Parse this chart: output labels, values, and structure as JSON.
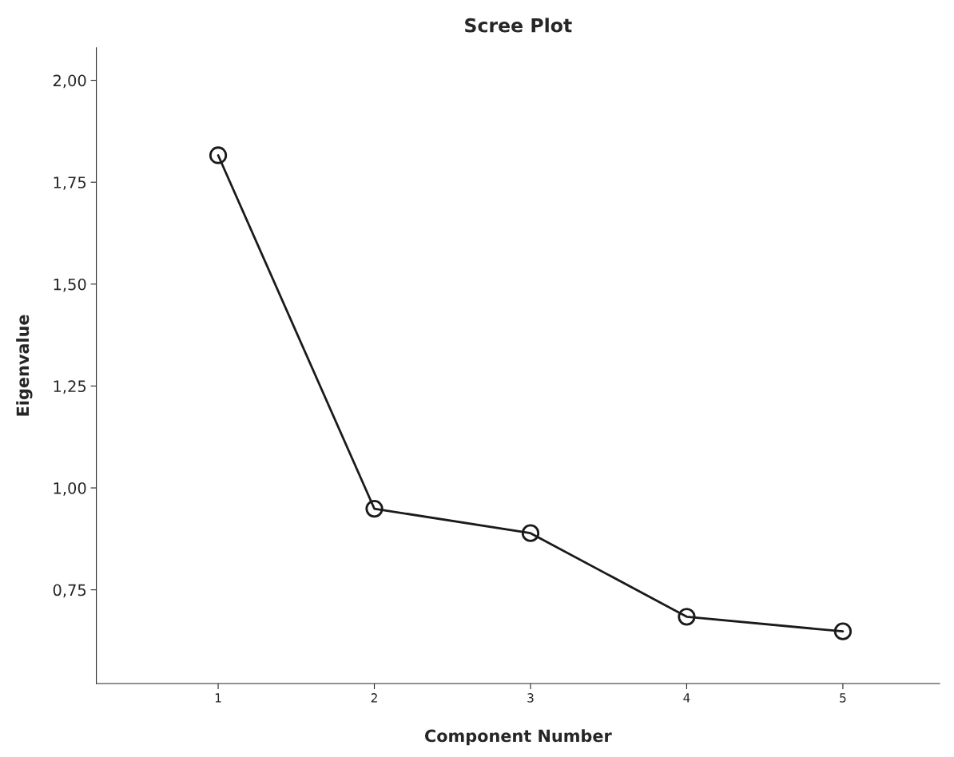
{
  "chart_data": {
    "type": "line",
    "title": "Scree Plot",
    "xlabel": "Component Number",
    "ylabel": "Eigenvalue",
    "x": [
      1,
      2,
      3,
      4,
      5
    ],
    "series": [
      {
        "color": "#1a1a1a",
        "values": [
          1.816,
          0.949,
          0.889,
          0.684,
          0.648
        ]
      }
    ],
    "marker": "circle",
    "line_style": "solid",
    "grid": false,
    "xlim": [
      0.22,
      5.62
    ],
    "xticks": [
      1,
      2,
      3,
      4,
      5
    ],
    "ylim": [
      0.52,
      2.08
    ],
    "yticks": [
      {
        "value": 0.75,
        "label": "0,75"
      },
      {
        "value": 1.0,
        "label": "1,00"
      },
      {
        "value": 1.25,
        "label": "1,25"
      },
      {
        "value": 1.5,
        "label": "1,50"
      },
      {
        "value": 1.75,
        "label": "1,75"
      },
      {
        "value": 2.0,
        "label": "2,00"
      }
    ]
  }
}
